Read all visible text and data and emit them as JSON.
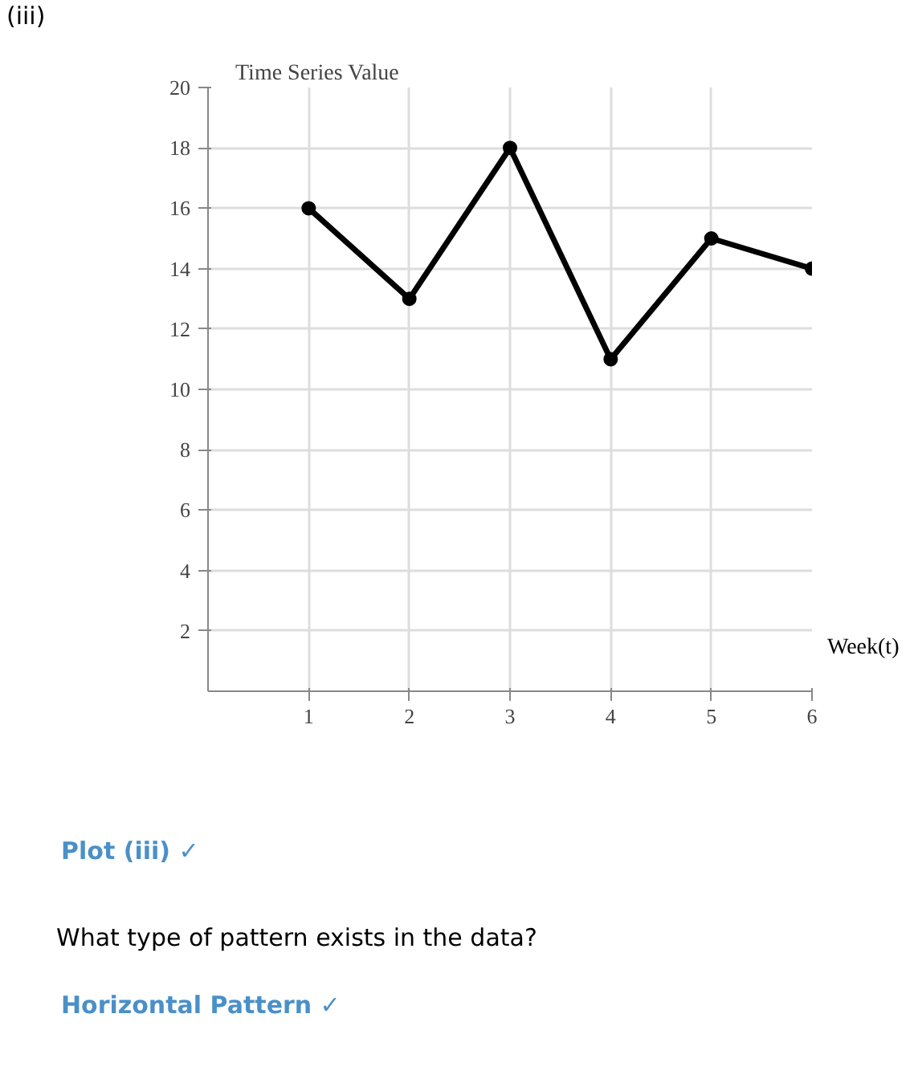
{
  "chart_data": {
    "type": "line",
    "xlabel": "Week(t)",
    "ylabel": "Time Series Value",
    "x": [
      1,
      2,
      3,
      4,
      5,
      6
    ],
    "series": [
      {
        "color": "#000000",
        "values": [
          16,
          13,
          18,
          11,
          15,
          14
        ]
      }
    ],
    "xlim": [
      0,
      6
    ],
    "ylim": [
      0,
      20
    ],
    "xticks": [
      1,
      2,
      3,
      4,
      5,
      6
    ],
    "yticks": [
      2,
      4,
      6,
      8,
      10,
      12,
      14,
      16,
      18,
      20
    ],
    "grid": true,
    "marker": "circle",
    "line_style": "solid",
    "annotations": [
      "(iii)",
      "Plot (iii) ✓",
      "What type of pattern exists in the data?",
      "Horizontal Pattern ✓"
    ]
  }
}
